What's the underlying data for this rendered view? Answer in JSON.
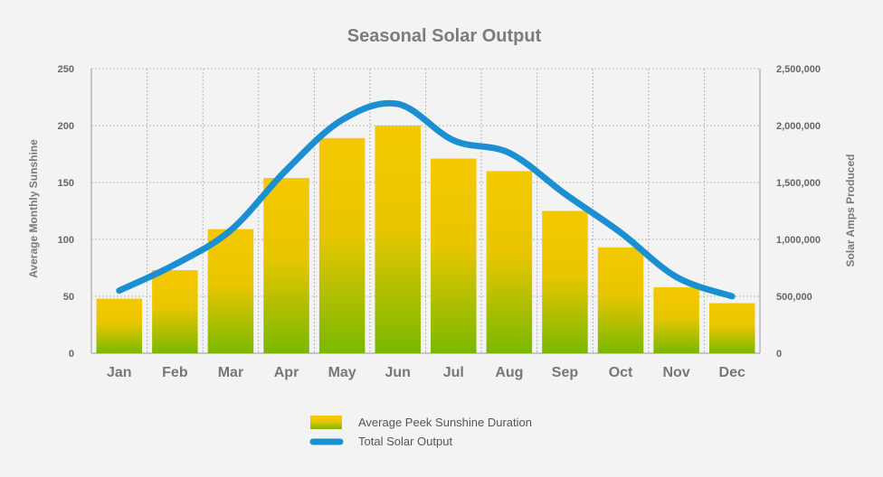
{
  "chart_data": {
    "type": "bar",
    "title": "Seasonal Solar Output",
    "categories": [
      "Jan",
      "Feb",
      "Mar",
      "Apr",
      "May",
      "Jun",
      "Jul",
      "Aug",
      "Sep",
      "Oct",
      "Nov",
      "Dec"
    ],
    "series": [
      {
        "name": "Average Peek Sunshine Duration",
        "type": "bar",
        "axis": "left",
        "values": [
          48,
          73,
          109,
          154,
          189,
          200,
          171,
          160,
          125,
          93,
          58,
          44
        ],
        "colors": {
          "top": "#f5c800",
          "bottom": "#7ab800"
        }
      },
      {
        "name": "Total Solar Output",
        "type": "line",
        "axis": "right",
        "values": [
          550000,
          780000,
          1080000,
          1610000,
          2050000,
          2190000,
          1870000,
          1760000,
          1400000,
          1060000,
          670000,
          500000
        ],
        "color": "#1a8fd1"
      }
    ],
    "ylabel": "Average Monthly Sunshine",
    "ylabel_right": "Solar Amps Produced",
    "xlabel": "",
    "ylim": [
      0,
      250
    ],
    "ylim_right": [
      0,
      2500000
    ],
    "yticks": [
      "0",
      "50",
      "100",
      "150",
      "200",
      "250"
    ],
    "yticks_right": [
      "0",
      "500,000",
      "1,000,000",
      "1,500,000",
      "2,000,000",
      "2,500,000"
    ],
    "grid": true,
    "legend_position": "bottom-center"
  }
}
